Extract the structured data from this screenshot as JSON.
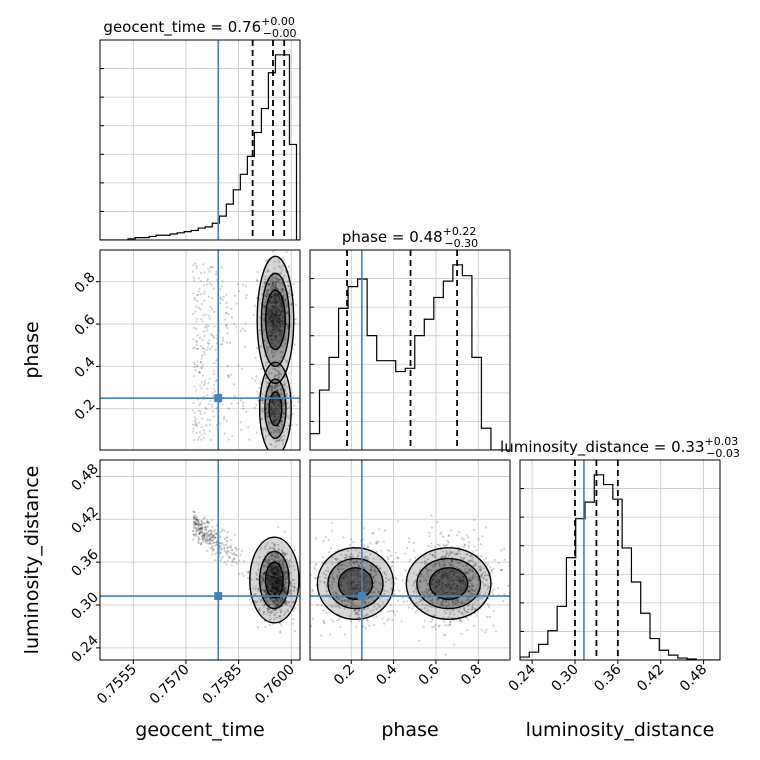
{
  "chart_data": {
    "type": "corner",
    "parameters": [
      "geocent_time",
      "phase",
      "luminosity_distance"
    ],
    "axis_labels": [
      "geocent_time",
      "phase",
      "luminosity_distance"
    ],
    "ranges": {
      "geocent_time": [
        0.75455,
        0.76025
      ],
      "phase": [
        0.005,
        0.95
      ],
      "luminosity_distance": [
        0.223,
        0.503
      ]
    },
    "ticks": {
      "geocent_time": [
        0.7555,
        0.757,
        0.7585,
        0.76
      ],
      "phase": [
        0.2,
        0.4,
        0.6,
        0.8
      ],
      "luminosity_distance": [
        0.24,
        0.3,
        0.36,
        0.42,
        0.48
      ]
    },
    "tick_labels": {
      "geocent_time": [
        "0.7555",
        "0.7570",
        "0.7585",
        "0.7600"
      ],
      "phase": [
        "0.2",
        "0.4",
        "0.6",
        "0.8"
      ],
      "luminosity_distance": [
        "0.24",
        "0.30",
        "0.36",
        "0.42",
        "0.48"
      ]
    },
    "truths": {
      "geocent_time": 0.75792,
      "phase": 0.25,
      "luminosity_distance": 0.3125
    },
    "titles": [
      {
        "param": "geocent_time",
        "prefix": "geocent_time = ",
        "value": "0.76",
        "plus": "+0.00",
        "minus": "−0.00"
      },
      {
        "param": "phase",
        "prefix": "phase = ",
        "value": "0.48",
        "plus": "+0.22",
        "minus": "−0.30"
      },
      {
        "param": "luminosity_distance",
        "prefix": "luminosity_distance = ",
        "value": "0.33",
        "plus": "+0.03",
        "minus": "−0.03"
      }
    ],
    "quantiles": {
      "geocent_time": [
        0.7589,
        0.75948,
        0.7598
      ],
      "phase": [
        0.18,
        0.48,
        0.7
      ],
      "luminosity_distance": [
        0.3,
        0.33,
        0.36
      ]
    },
    "histograms": {
      "geocent_time": {
        "bin_edges": [
          0.75455,
          0.75475,
          0.75495,
          0.75515,
          0.75535,
          0.75555,
          0.75575,
          0.75595,
          0.75615,
          0.75635,
          0.75655,
          0.75675,
          0.75695,
          0.75715,
          0.75735,
          0.75755,
          0.75775,
          0.75795,
          0.75815,
          0.75835,
          0.75855,
          0.75875,
          0.75895,
          0.75915,
          0.75935,
          0.75955,
          0.75975,
          0.75995,
          0.76015,
          0.76025
        ],
        "counts": [
          0,
          0,
          0,
          0,
          1,
          2,
          2,
          3,
          4,
          4,
          5,
          6,
          7,
          8,
          10,
          11,
          14,
          20,
          30,
          42,
          55,
          70,
          90,
          110,
          140,
          155,
          155,
          80,
          0
        ]
      },
      "phase": {
        "bin_edges": [
          0.005,
          0.05,
          0.095,
          0.14,
          0.185,
          0.23,
          0.275,
          0.32,
          0.365,
          0.41,
          0.455,
          0.5,
          0.545,
          0.59,
          0.635,
          0.68,
          0.725,
          0.77,
          0.815,
          0.86,
          0.905,
          0.95
        ],
        "counts": [
          15,
          55,
          85,
          130,
          150,
          157,
          105,
          82,
          82,
          72,
          75,
          105,
          120,
          140,
          155,
          170,
          160,
          85,
          20,
          0,
          0
        ]
      },
      "luminosity_distance": {
        "bin_edges": [
          0.223,
          0.236,
          0.249,
          0.262,
          0.275,
          0.288,
          0.301,
          0.314,
          0.327,
          0.34,
          0.353,
          0.366,
          0.379,
          0.392,
          0.405,
          0.418,
          0.431,
          0.444,
          0.457,
          0.47,
          0.483,
          0.503
        ],
        "counts": [
          3,
          8,
          16,
          30,
          55,
          105,
          145,
          162,
          190,
          180,
          165,
          115,
          80,
          48,
          22,
          10,
          5,
          2,
          1,
          0,
          0
        ]
      }
    },
    "grid": true
  }
}
